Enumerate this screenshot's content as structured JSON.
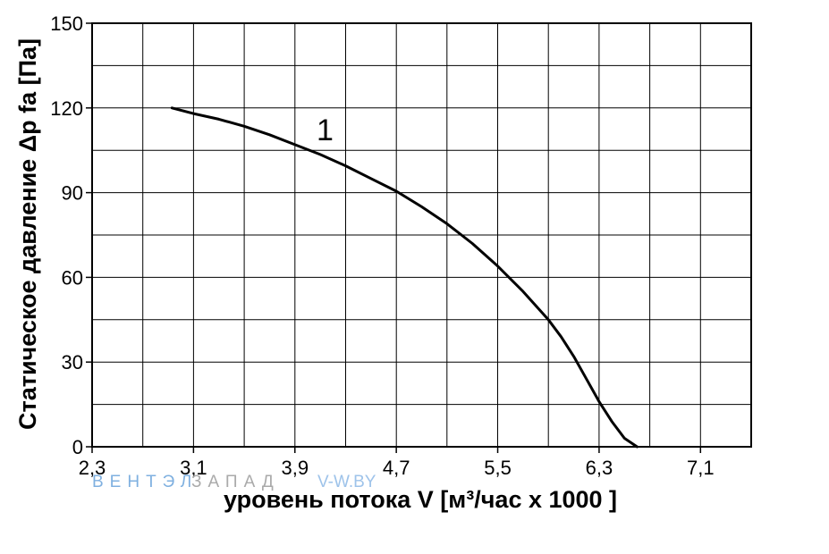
{
  "chart_data": {
    "type": "line",
    "xlabel": "уровень потока  V [м³/час х 1000 ]",
    "ylabel": "Статическое давление  Δp fa [Па]",
    "x_ticks": [
      "2,3",
      "3,1",
      "3,9",
      "4,7",
      "5,5",
      "6,3",
      "7,1"
    ],
    "y_ticks": [
      "0",
      "30",
      "60",
      "90",
      "120",
      "150"
    ],
    "xlim": [
      2.3,
      7.5
    ],
    "ylim": [
      0,
      150
    ],
    "grid": true,
    "series": [
      {
        "name": "1",
        "color": "#000000",
        "x": [
          2.93,
          3.1,
          3.3,
          3.5,
          3.7,
          3.9,
          4.1,
          4.3,
          4.5,
          4.7,
          4.9,
          5.1,
          5.3,
          5.5,
          5.7,
          5.9,
          6.0,
          6.1,
          6.2,
          6.3,
          6.4,
          6.5,
          6.6
        ],
        "y": [
          120,
          118,
          116,
          113.5,
          110.5,
          107,
          103.5,
          99.5,
          95,
          90.5,
          85,
          79,
          72,
          64,
          55,
          45,
          39,
          32,
          24,
          16,
          9,
          3,
          0
        ]
      }
    ]
  },
  "watermark": {
    "part1": "ВЕНТЭЛ",
    "part2": "ЗАПАД",
    "part3": "V-W.BY"
  }
}
